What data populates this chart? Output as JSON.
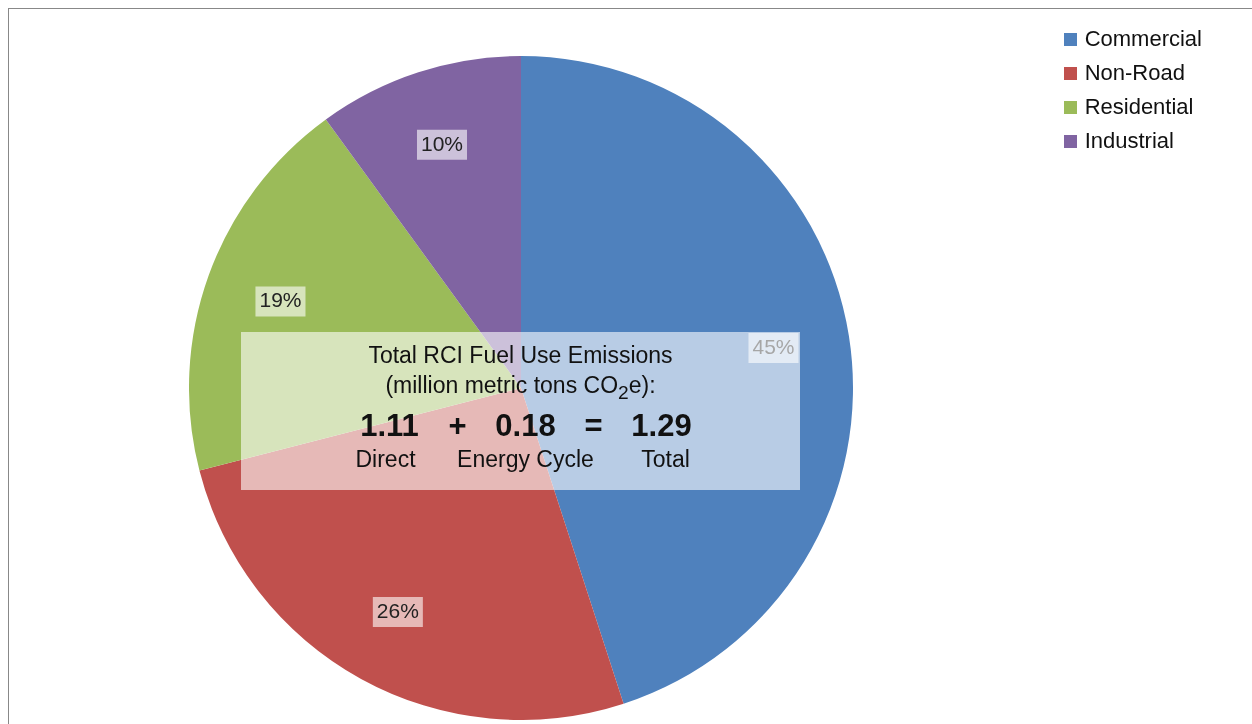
{
  "chart_data": {
    "type": "pie",
    "categories": [
      "Commercial",
      "Non-Road",
      "Residential",
      "Industrial"
    ],
    "values": [
      45,
      26,
      19,
      10
    ],
    "colors": [
      "#4f81bd",
      "#c0504d",
      "#9bbb59",
      "#8064a2"
    ],
    "value_labels": [
      "45%",
      "26%",
      "19%",
      "10%"
    ],
    "legend": "top right",
    "annotations": [
      "Total RCI Fuel Use Emissions",
      "(million metric tons CO$_{2}$e):",
      "1.11",
      "+",
      "0.18",
      "=",
      "1.29",
      "Direct",
      "Energy Cycle",
      "Total"
    ]
  }
}
